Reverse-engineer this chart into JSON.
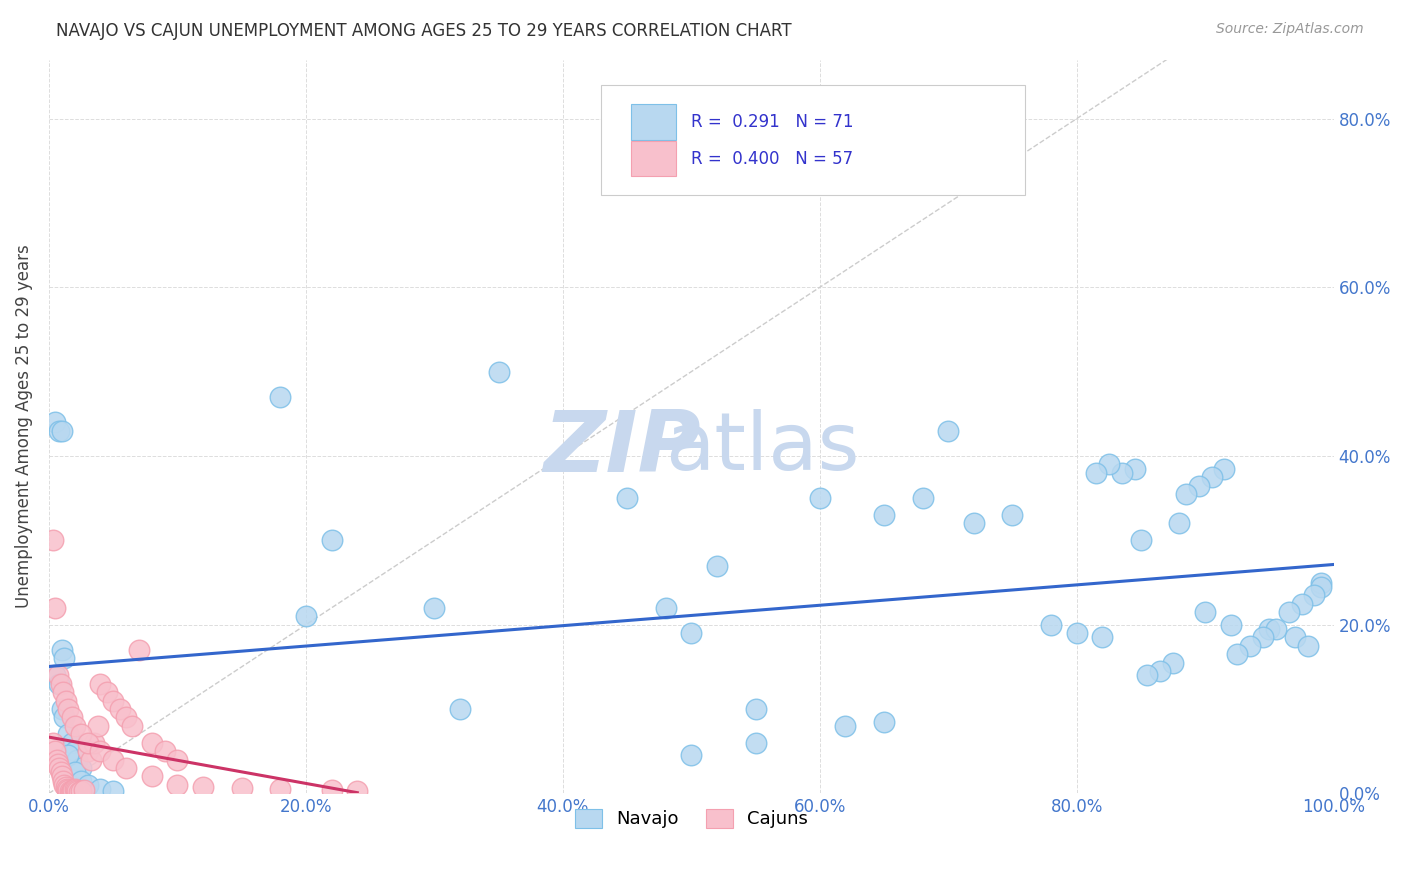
{
  "title": "NAVAJO VS CAJUN UNEMPLOYMENT AMONG AGES 25 TO 29 YEARS CORRELATION CHART",
  "source": "Source: ZipAtlas.com",
  "ylabel": "Unemployment Among Ages 25 to 29 years",
  "navajo_color": "#7ec0e8",
  "cajun_color": "#f4a0b0",
  "navajo_fill": "#b8d8f0",
  "cajun_fill": "#f8c0cc",
  "trend_navajo_color": "#3366cc",
  "trend_cajun_color": "#cc3366",
  "diagonal_color": "#cccccc",
  "watermark_zip_color": "#c8d8ee",
  "watermark_atlas_color": "#c8d8ee",
  "legend_navajo_fill": "#b8d8f0",
  "legend_cajun_fill": "#f8c0cc",
  "navajo_x": [
    0.005,
    0.008,
    0.01,
    0.012,
    0.015,
    0.018,
    0.02,
    0.022,
    0.025,
    0.01,
    0.012,
    0.015,
    0.02,
    0.025,
    0.03,
    0.04,
    0.05,
    0.005,
    0.008,
    0.01,
    0.18,
    0.2,
    0.22,
    0.3,
    0.32,
    0.35,
    0.45,
    0.48,
    0.5,
    0.52,
    0.55,
    0.6,
    0.62,
    0.65,
    0.68,
    0.7,
    0.72,
    0.75,
    0.78,
    0.8,
    0.82,
    0.85,
    0.88,
    0.9,
    0.92,
    0.95,
    0.97,
    0.98,
    0.99,
    0.99,
    0.985,
    0.975,
    0.965,
    0.955,
    0.945,
    0.935,
    0.925,
    0.915,
    0.905,
    0.895,
    0.885,
    0.875,
    0.865,
    0.855,
    0.845,
    0.835,
    0.825,
    0.815,
    0.5,
    0.55,
    0.65
  ],
  "navajo_y": [
    0.14,
    0.13,
    0.1,
    0.09,
    0.07,
    0.06,
    0.05,
    0.04,
    0.03,
    0.17,
    0.16,
    0.045,
    0.025,
    0.015,
    0.01,
    0.005,
    0.003,
    0.44,
    0.43,
    0.43,
    0.47,
    0.21,
    0.3,
    0.22,
    0.1,
    0.5,
    0.35,
    0.22,
    0.19,
    0.27,
    0.1,
    0.35,
    0.08,
    0.085,
    0.35,
    0.43,
    0.32,
    0.33,
    0.2,
    0.19,
    0.185,
    0.3,
    0.32,
    0.215,
    0.2,
    0.195,
    0.185,
    0.175,
    0.25,
    0.245,
    0.235,
    0.225,
    0.215,
    0.195,
    0.185,
    0.175,
    0.165,
    0.385,
    0.375,
    0.365,
    0.355,
    0.155,
    0.145,
    0.14,
    0.385,
    0.38,
    0.39,
    0.38,
    0.045,
    0.06,
    0.33
  ],
  "cajun_x": [
    0.003,
    0.005,
    0.006,
    0.007,
    0.008,
    0.009,
    0.01,
    0.011,
    0.012,
    0.013,
    0.014,
    0.015,
    0.016,
    0.017,
    0.018,
    0.019,
    0.02,
    0.021,
    0.022,
    0.023,
    0.025,
    0.027,
    0.03,
    0.033,
    0.035,
    0.038,
    0.04,
    0.045,
    0.05,
    0.055,
    0.06,
    0.065,
    0.07,
    0.08,
    0.09,
    0.1,
    0.003,
    0.005,
    0.007,
    0.009,
    0.011,
    0.013,
    0.015,
    0.018,
    0.02,
    0.025,
    0.03,
    0.04,
    0.05,
    0.06,
    0.08,
    0.1,
    0.12,
    0.15,
    0.18,
    0.22,
    0.24
  ],
  "cajun_y": [
    0.06,
    0.05,
    0.04,
    0.035,
    0.03,
    0.025,
    0.02,
    0.015,
    0.01,
    0.008,
    0.005,
    0.004,
    0.003,
    0.002,
    0.003,
    0.004,
    0.005,
    0.004,
    0.003,
    0.002,
    0.003,
    0.004,
    0.05,
    0.04,
    0.06,
    0.08,
    0.13,
    0.12,
    0.11,
    0.1,
    0.09,
    0.08,
    0.17,
    0.06,
    0.05,
    0.04,
    0.3,
    0.22,
    0.14,
    0.13,
    0.12,
    0.11,
    0.1,
    0.09,
    0.08,
    0.07,
    0.06,
    0.05,
    0.04,
    0.03,
    0.02,
    0.01,
    0.008,
    0.006,
    0.005,
    0.004,
    0.003
  ],
  "xlim": [
    0,
    1.0
  ],
  "ylim": [
    0,
    0.87
  ],
  "xticks": [
    0,
    0.2,
    0.4,
    0.6,
    0.8,
    1.0
  ],
  "yticks": [
    0.0,
    0.2,
    0.4,
    0.6,
    0.8
  ],
  "xtick_labels": [
    "0.0%",
    "20.0%",
    "40.0%",
    "60.0%",
    "80.0%",
    "100.0%"
  ],
  "ytick_labels": [
    "0.0%",
    "20.0%",
    "40.0%",
    "60.0%",
    "80.0%"
  ]
}
